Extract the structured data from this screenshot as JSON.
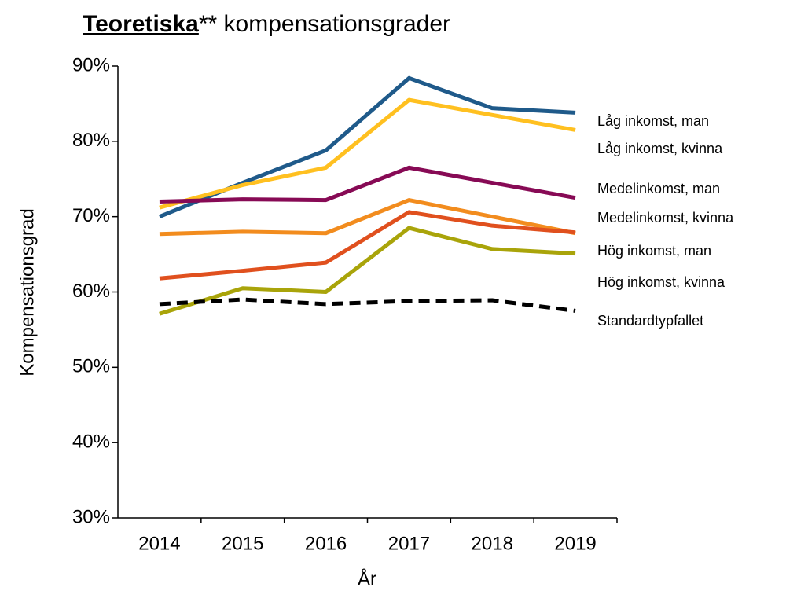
{
  "chart_data": {
    "type": "line",
    "title": {
      "emphasis": "Teoretiska",
      "text": "** kompensationsgrader"
    },
    "y_label": "Kompensationsgrad",
    "x_label": "År",
    "categories": [
      "2014",
      "2015",
      "2016",
      "2017",
      "2018",
      "2019"
    ],
    "ylim": [
      30,
      90
    ],
    "yticks": [
      {
        "value": 30,
        "label": "30%"
      },
      {
        "value": 40,
        "label": "40%"
      },
      {
        "value": 50,
        "label": "50%"
      },
      {
        "value": 60,
        "label": "60%"
      },
      {
        "value": 70,
        "label": "70%"
      },
      {
        "value": 80,
        "label": "80%"
      },
      {
        "value": 90,
        "label": "90%"
      }
    ],
    "grid": false,
    "series": [
      {
        "name": "Låg inkomst, man",
        "color": "#1f5a8a",
        "label_color": "#a6a6a6",
        "values": [
          70.0,
          74.5,
          78.8,
          88.4,
          84.4,
          83.8
        ]
      },
      {
        "name": "Låg inkomst, kvinna",
        "color": "#ffc020",
        "label_color": "#ffc020",
        "values": [
          71.2,
          74.2,
          76.5,
          85.5,
          83.5,
          81.5
        ]
      },
      {
        "name": "Medelinkomst, man",
        "color": "#870a55",
        "label_color": "#870a55",
        "values": [
          72.0,
          72.3,
          72.2,
          76.5,
          74.5,
          72.5
        ]
      },
      {
        "name": "Medelinkomst, kvinna",
        "color": "#f28c1e",
        "label_color": "#f28c1e",
        "values": [
          67.7,
          68.0,
          67.8,
          72.2,
          70.0,
          67.8
        ]
      },
      {
        "name": "Hög inkomst, man",
        "color": "#e0501e",
        "label_color": "#e03c3c",
        "values": [
          61.8,
          62.8,
          63.9,
          70.6,
          68.8,
          67.9
        ]
      },
      {
        "name": "Hög inkomst, kvinna",
        "color": "#a9a40a",
        "label_color": "#a9a40a",
        "values": [
          57.1,
          60.5,
          60.0,
          68.5,
          65.7,
          65.1
        ]
      },
      {
        "name": "Standardtypfallet",
        "color": "#000000",
        "label_color": "#000000",
        "dashed": true,
        "values": [
          58.4,
          59.0,
          58.4,
          58.8,
          58.9,
          57.5
        ]
      }
    ]
  }
}
